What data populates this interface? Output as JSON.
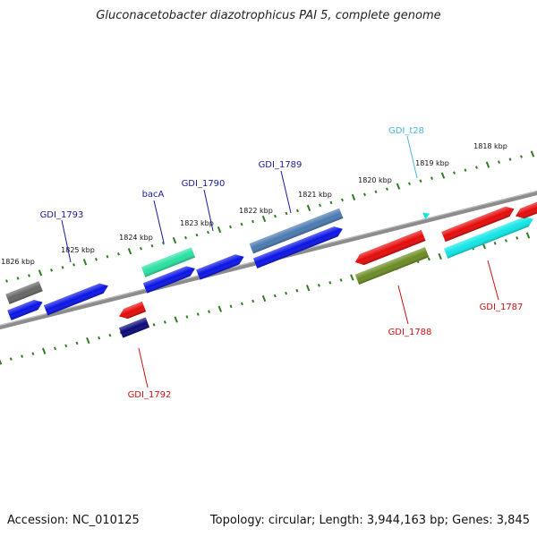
{
  "title": "Gluconacetobacter diazotrophicus PAI 5, complete genome",
  "footer": {
    "accession": "Accession: NC_010125",
    "summary": "Topology: circular; Length: 3,944,163 bp; Genes: 3,845"
  },
  "map": {
    "colors": {
      "backbone": "#8c8c8c",
      "tick": "#2f7d22",
      "tick_label": "#111111",
      "label_forward": "#1a1a9c",
      "label_reverse": "#cc1111",
      "label_rna": "#4ab7d9",
      "cds_forward": "#0a14e6",
      "cds_reverse": "#e60a0a",
      "rna": "#12e6e6",
      "gray": "#666666",
      "steelblue": "#4a7ab0",
      "seagreen": "#2ae0a0",
      "olive": "#6b8c22",
      "navy": "#0a0a7a"
    },
    "kbp_ticks": [
      "1818 kbp",
      "1819 kbp",
      "1820 kbp",
      "1821 kbp",
      "1822 kbp",
      "1823 kbp",
      "1824 kbp",
      "1825 kbp",
      "1826 kbp"
    ],
    "features": [
      {
        "name": "",
        "ring": "outer",
        "color": "gray"
      },
      {
        "name": "GDI_1793",
        "ring": "inner",
        "color": "cds_forward"
      },
      {
        "name": "",
        "ring": "inner",
        "color": "cds_forward"
      },
      {
        "name": "bacA",
        "ring": "outer",
        "color": "seagreen"
      },
      {
        "name": "",
        "ring": "inner",
        "color": "cds_forward"
      },
      {
        "name": "GDI_1790",
        "ring": "inner",
        "color": "cds_forward"
      },
      {
        "name": "",
        "ring": "outer",
        "color": "steelblue"
      },
      {
        "name": "GDI_1789",
        "ring": "inner",
        "color": "cds_forward"
      },
      {
        "name": "GDI_1792",
        "ring": "reverse",
        "color": "cds_reverse"
      },
      {
        "name": "",
        "ring": "reverse-2",
        "color": "navy"
      },
      {
        "name": "",
        "ring": "reverse",
        "color": "cds_reverse"
      },
      {
        "name": "GDI_1788",
        "ring": "reverse-2",
        "color": "olive"
      },
      {
        "name": "GDI_t28",
        "ring": "tick",
        "color": "rna"
      },
      {
        "name": "",
        "ring": "inner",
        "color": "cds_reverse"
      },
      {
        "name": "GDI_1787",
        "ring": "inner",
        "color": "rna"
      },
      {
        "name": "",
        "ring": "inner",
        "color": "cds_reverse"
      }
    ]
  }
}
